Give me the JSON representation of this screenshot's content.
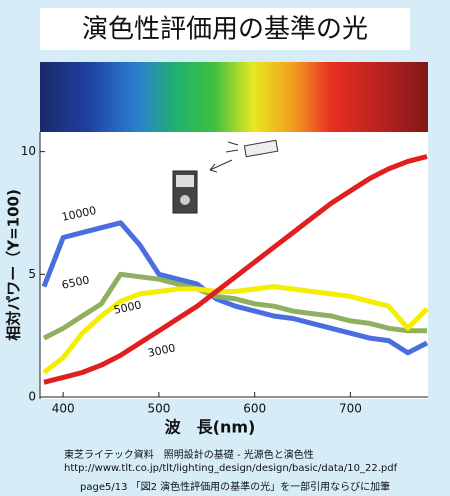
{
  "chart_data": {
    "type": "line",
    "title": "演色性評価用の基準の光",
    "xlabel": "波　長(nm)",
    "ylabel": "相対パワー（Y=100)",
    "x": [
      380,
      400,
      420,
      440,
      460,
      480,
      500,
      520,
      540,
      560,
      580,
      600,
      620,
      640,
      660,
      680,
      700,
      720,
      740,
      760,
      780
    ],
    "series": [
      {
        "name": "10000",
        "color": "#4a6ee0",
        "values": [
          4.5,
          6.5,
          6.7,
          6.9,
          7.1,
          6.2,
          5.0,
          4.8,
          4.6,
          4.0,
          3.7,
          3.5,
          3.3,
          3.2,
          3.0,
          2.8,
          2.6,
          2.4,
          2.3,
          1.8,
          2.2
        ]
      },
      {
        "name": "6500",
        "color": "#8fb060",
        "values": [
          2.4,
          2.8,
          3.3,
          3.8,
          5.0,
          4.9,
          4.8,
          4.6,
          4.4,
          4.1,
          4.0,
          3.8,
          3.7,
          3.5,
          3.4,
          3.3,
          3.1,
          3.0,
          2.8,
          2.7,
          2.7
        ]
      },
      {
        "name": "5000",
        "color": "#f4ee00",
        "values": [
          1.0,
          1.6,
          2.6,
          3.3,
          3.9,
          4.2,
          4.3,
          4.4,
          4.4,
          4.3,
          4.3,
          4.4,
          4.5,
          4.4,
          4.3,
          4.2,
          4.1,
          3.9,
          3.7,
          2.8,
          3.6
        ]
      },
      {
        "name": "3000",
        "color": "#e02020",
        "values": [
          0.6,
          0.8,
          1.0,
          1.3,
          1.7,
          2.2,
          2.7,
          3.2,
          3.7,
          4.3,
          4.9,
          5.5,
          6.1,
          6.7,
          7.3,
          7.9,
          8.4,
          8.9,
          9.3,
          9.6,
          9.8
        ]
      }
    ],
    "xlim": [
      380,
      780
    ],
    "xticks": [
      400,
      500,
      600,
      700
    ],
    "ylim": [
      0,
      10.8
    ],
    "yticks": [
      0,
      5,
      10
    ],
    "source": [
      "東芝ライテック資料　照明設計の基礎 - 光源色と演色性",
      "http://www.tlt.co.jp/tlt/lighting_design/design/basic/data/10_22.pdf",
      "page5/13 「図2 演色性評価用の基準の光」を一部引用ならびに加筆"
    ]
  }
}
